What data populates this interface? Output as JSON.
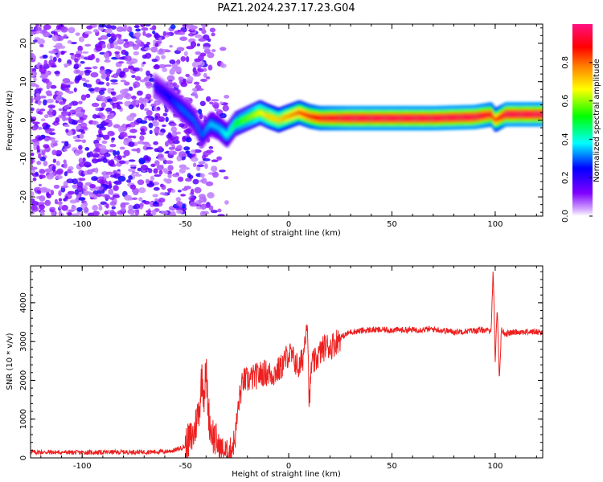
{
  "figure": {
    "title": "PAZ1.2024.237.17.23.G04"
  },
  "chart_data": [
    {
      "type": "heatmap",
      "xlabel": "Height of straight line (km)",
      "ylabel": "Frequency (Hz)",
      "xlim": [
        -125,
        123
      ],
      "ylim": [
        -25,
        25
      ],
      "xticks": [
        -100,
        -50,
        0,
        50,
        100
      ],
      "yticks": [
        -20,
        -10,
        0,
        10,
        20
      ],
      "colorbar": {
        "label": "Normalized spectral amplitude",
        "range": [
          0,
          1
        ],
        "ticks": [
          "0.0",
          "0.2",
          "0.4",
          "0.6",
          "0.8"
        ],
        "colors": [
          "#ffffff",
          "#8000ff",
          "#0000ff",
          "#00ffff",
          "#00ff00",
          "#ffff00",
          "#ff8000",
          "#ff0000",
          "#ff0080"
        ]
      },
      "ridge": {
        "x": [
          -65,
          -58,
          -52,
          -46,
          -42,
          -38,
          -34,
          -30,
          -26,
          -22,
          -18,
          -14,
          -10,
          -5,
          0,
          5,
          10,
          15,
          30,
          50,
          70,
          90,
          98,
          100,
          105,
          123
        ],
        "f": [
          9,
          6,
          3,
          0,
          -4,
          -1,
          -2,
          -4,
          -1,
          0,
          1,
          2,
          1,
          0,
          1,
          2,
          1,
          0.5,
          0.5,
          0.5,
          0.5,
          0.8,
          1.5,
          0,
          1.5,
          1.5
        ],
        "amp": [
          0.2,
          0.25,
          0.3,
          0.3,
          0.3,
          0.35,
          0.35,
          0.4,
          0.5,
          0.55,
          0.6,
          0.65,
          0.7,
          0.7,
          0.75,
          0.8,
          0.85,
          0.9,
          0.95,
          0.95,
          0.95,
          0.95,
          0.9,
          0.8,
          0.95,
          0.95
        ]
      }
    },
    {
      "type": "line",
      "xlabel": "Height of straight line (km)",
      "ylabel": "SNR (10 * v/v)",
      "xlim": [
        -125,
        123
      ],
      "ylim": [
        0,
        4950
      ],
      "xticks": [
        -100,
        -50,
        0,
        50,
        100
      ],
      "yticks": [
        0,
        1000,
        2000,
        3000,
        4000
      ],
      "color": "#ee2020",
      "series": [
        {
          "x": [
            -125,
            -100,
            -80,
            -60,
            -55,
            -50,
            -46,
            -43,
            -42,
            -41,
            -40,
            -39,
            -38,
            -36,
            -34,
            -32,
            -30,
            -28,
            -26,
            -24,
            -22,
            -20,
            -16,
            -12,
            -8,
            -4,
            0,
            3,
            5,
            7,
            9,
            10,
            11,
            13,
            15,
            18,
            20,
            25,
            30,
            40,
            50,
            60,
            70,
            80,
            90,
            95,
            98,
            99,
            100,
            101,
            102,
            103,
            105,
            110,
            123
          ],
          "y": [
            150,
            140,
            150,
            160,
            200,
            300,
            600,
            1400,
            2200,
            1600,
            2300,
            1300,
            800,
            500,
            300,
            200,
            120,
            200,
            500,
            1500,
            2000,
            2000,
            2100,
            2200,
            2150,
            2300,
            2700,
            2500,
            2300,
            2600,
            3700,
            1300,
            2400,
            2500,
            2700,
            2900,
            2850,
            3100,
            3250,
            3300,
            3300,
            3300,
            3320,
            3250,
            3280,
            3300,
            3250,
            4900,
            2500,
            3900,
            2000,
            3300,
            3200,
            3250,
            3250
          ]
        }
      ]
    }
  ]
}
